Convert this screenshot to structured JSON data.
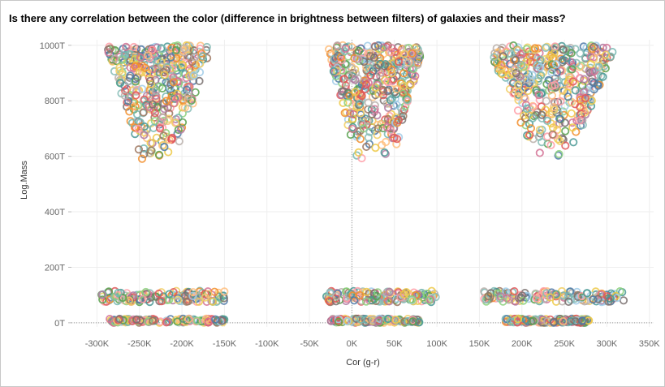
{
  "chart_data": {
    "type": "scatter",
    "title": "Is there any correlation between the color (difference in brightness between filters) of galaxies and their mass?",
    "xlabel": "Cor (g-r)",
    "ylabel": "Log.Mass",
    "xlim": [
      -330000,
      355000
    ],
    "ylim": [
      -15000,
      1020000
    ],
    "x_ticks": [
      {
        "value": -300000,
        "label": "-300K"
      },
      {
        "value": -250000,
        "label": "-250K"
      },
      {
        "value": -200000,
        "label": "-200K"
      },
      {
        "value": -150000,
        "label": "-150K"
      },
      {
        "value": -100000,
        "label": "-100K"
      },
      {
        "value": -50000,
        "label": "-50K"
      },
      {
        "value": 0,
        "label": "0K"
      },
      {
        "value": 50000,
        "label": "50K"
      },
      {
        "value": 100000,
        "label": "100K"
      },
      {
        "value": 150000,
        "label": "150K"
      },
      {
        "value": 200000,
        "label": "200K"
      },
      {
        "value": 250000,
        "label": "250K"
      },
      {
        "value": 300000,
        "label": "300K"
      },
      {
        "value": 350000,
        "label": "350K"
      }
    ],
    "y_ticks": [
      {
        "value": 0,
        "label": "0T"
      },
      {
        "value": 200000,
        "label": "200T"
      },
      {
        "value": 400000,
        "label": "400T"
      },
      {
        "value": 600000,
        "label": "600T"
      },
      {
        "value": 800000,
        "label": "800T"
      },
      {
        "value": 1000000,
        "label": "1000T"
      }
    ],
    "grid": true,
    "marker": "hollow-circle",
    "palette": [
      "#4e79a7",
      "#f28e2b",
      "#e15759",
      "#76b7b2",
      "#59a14f",
      "#edc948",
      "#b07aa1",
      "#ff9da7",
      "#9c755f",
      "#bab0ac",
      "#86bcb6",
      "#d37295",
      "#8cd17d",
      "#a0cbe8",
      "#ffbe7d",
      "#499894",
      "#f1ce63",
      "#79706e"
    ],
    "clusters": [
      {
        "x_range": [
          -290000,
          -165000
        ],
        "y_range": [
          580000,
          1000000
        ],
        "shape": "upper-wedge"
      },
      {
        "x_range": [
          -30000,
          85000
        ],
        "y_range": [
          575000,
          1000000
        ],
        "shape": "upper-narrow"
      },
      {
        "x_range": [
          160000,
          310000
        ],
        "y_range": [
          585000,
          1000000
        ],
        "shape": "upper-wedge"
      },
      {
        "x_range": [
          -295000,
          -150000
        ],
        "y_range": [
          75000,
          115000
        ],
        "shape": "band"
      },
      {
        "x_range": [
          -30000,
          100000
        ],
        "y_range": [
          75000,
          115000
        ],
        "shape": "band"
      },
      {
        "x_range": [
          155000,
          320000
        ],
        "y_range": [
          75000,
          115000
        ],
        "shape": "band"
      },
      {
        "x_range": [
          -285000,
          -150000
        ],
        "y_range": [
          0,
          15000
        ],
        "shape": "band"
      },
      {
        "x_range": [
          -25000,
          80000
        ],
        "y_range": [
          0,
          15000
        ],
        "shape": "band"
      },
      {
        "x_range": [
          180000,
          280000
        ],
        "y_range": [
          0,
          15000
        ],
        "shape": "band"
      }
    ]
  }
}
